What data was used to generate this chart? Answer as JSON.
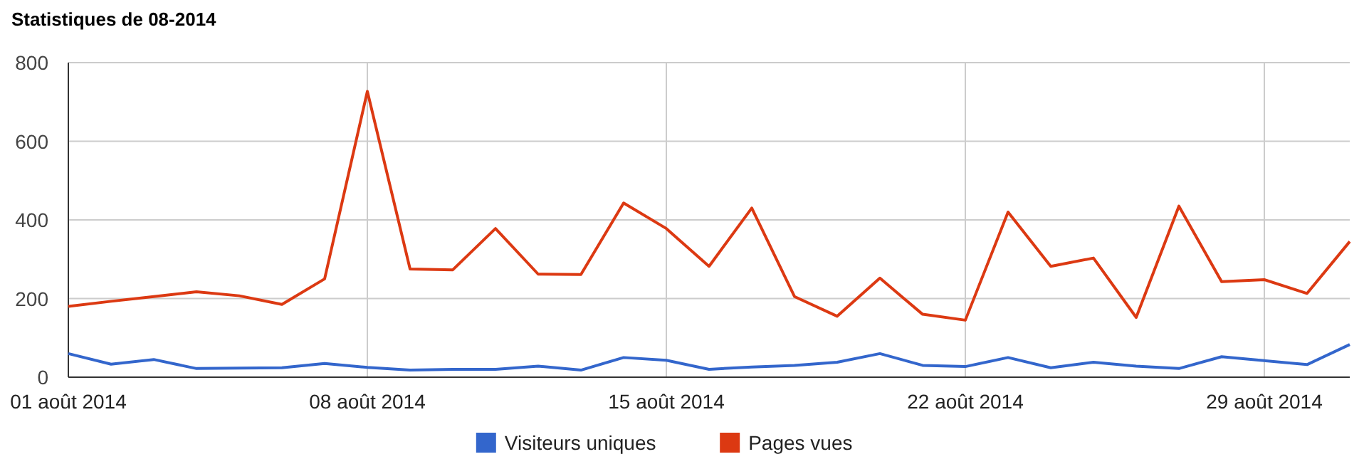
{
  "chart_data": {
    "type": "line",
    "title": "Statistiques de 08-2014",
    "x": [
      "2014-08-01",
      "2014-08-02",
      "2014-08-03",
      "2014-08-04",
      "2014-08-05",
      "2014-08-06",
      "2014-08-07",
      "2014-08-08",
      "2014-08-09",
      "2014-08-10",
      "2014-08-11",
      "2014-08-12",
      "2014-08-13",
      "2014-08-14",
      "2014-08-15",
      "2014-08-16",
      "2014-08-17",
      "2014-08-18",
      "2014-08-19",
      "2014-08-20",
      "2014-08-21",
      "2014-08-22",
      "2014-08-23",
      "2014-08-24",
      "2014-08-25",
      "2014-08-26",
      "2014-08-27",
      "2014-08-28",
      "2014-08-29",
      "2014-08-30",
      "2014-08-31"
    ],
    "series": [
      {
        "name": "Visiteurs uniques",
        "color": "#3366cc",
        "values": [
          60,
          33,
          45,
          22,
          23,
          24,
          35,
          25,
          18,
          20,
          20,
          28,
          18,
          50,
          43,
          20,
          26,
          30,
          38,
          60,
          30,
          27,
          50,
          24,
          38,
          28,
          22,
          52,
          42,
          32,
          83
        ]
      },
      {
        "name": "Pages vues",
        "color": "#dc3912",
        "values": [
          180,
          193,
          205,
          217,
          207,
          185,
          250,
          727,
          275,
          273,
          378,
          262,
          261,
          443,
          378,
          282,
          430,
          205,
          155,
          252,
          160,
          145,
          420,
          282,
          303,
          152,
          435,
          243,
          248,
          213,
          345
        ]
      }
    ],
    "xlim": [
      "2014-08-01",
      "2014-08-31"
    ],
    "xticks": [
      {
        "value": "2014-08-01",
        "label": "01 août 2014"
      },
      {
        "value": "2014-08-08",
        "label": "08 août 2014"
      },
      {
        "value": "2014-08-15",
        "label": "15 août 2014"
      },
      {
        "value": "2014-08-22",
        "label": "22 août 2014"
      },
      {
        "value": "2014-08-29",
        "label": "29 août 2014"
      }
    ],
    "ylim": [
      0,
      800
    ],
    "yticks": [
      0,
      200,
      400,
      600,
      800
    ],
    "grid": true,
    "legend": "bottom",
    "marker": "none",
    "line_style": "solid"
  }
}
